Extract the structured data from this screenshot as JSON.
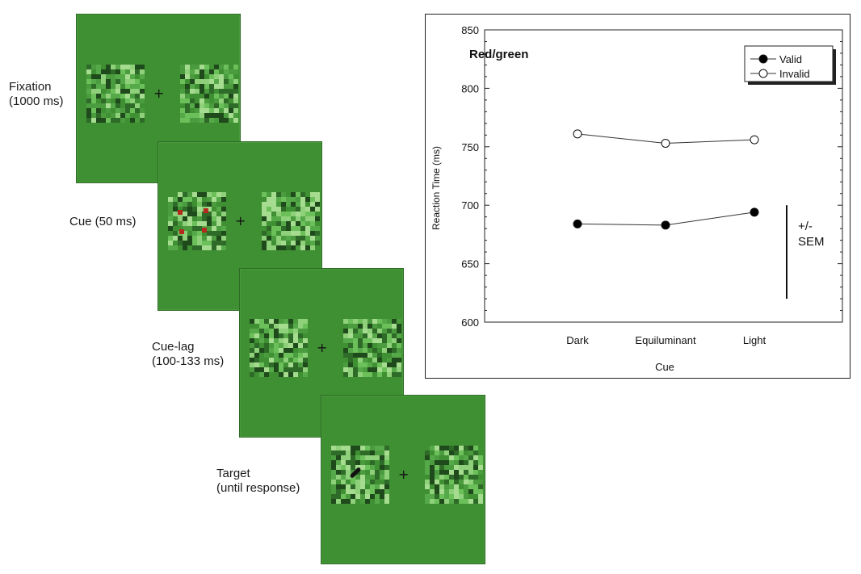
{
  "stages": [
    {
      "id": "fixation",
      "label": "Fixation\n(1000 ms)"
    },
    {
      "id": "cue",
      "label": "Cue (50 ms)"
    },
    {
      "id": "cue-lag",
      "label": "Cue-lag\n(100-133 ms)"
    },
    {
      "id": "target",
      "label": "Target\n(until response)"
    }
  ],
  "colors": {
    "panel_green": "#3f8f33",
    "cue_red": "#b5291f",
    "valid_marker": "#000000",
    "invalid_marker": "#ffffff"
  },
  "chart_data": {
    "type": "line",
    "title": "Red/green",
    "xlabel": "Cue",
    "ylabel": "Reaction Time (ms)",
    "categories": [
      "Dark",
      "Equiluminant",
      "Light"
    ],
    "ylim": [
      600,
      850
    ],
    "yticks": [
      600,
      650,
      700,
      750,
      800,
      850
    ],
    "series": [
      {
        "name": "Valid",
        "marker": "filled-circle",
        "values": [
          684,
          683,
          694
        ]
      },
      {
        "name": "Invalid",
        "marker": "open-circle",
        "values": [
          761,
          753,
          756
        ]
      }
    ],
    "legend_position": "top-right",
    "error_bar_label": "+/-\nSEM",
    "error_bar_range": [
      620,
      700
    ],
    "grid": false
  }
}
